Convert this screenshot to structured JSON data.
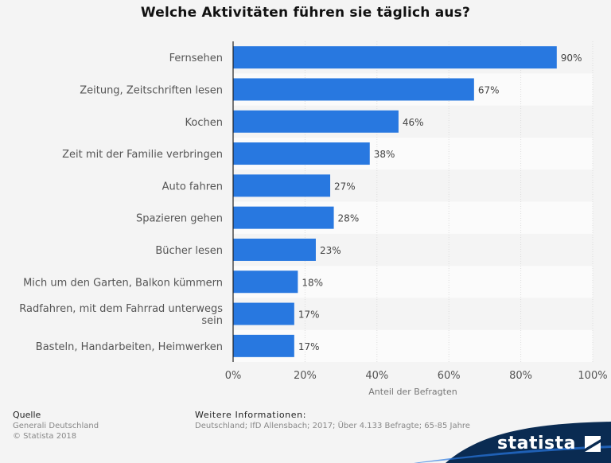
{
  "chart_data": {
    "type": "bar",
    "orientation": "horizontal",
    "title": "Welche Aktivitäten führen sie täglich aus?",
    "xlabel": "Anteil der Befragten",
    "xlim": [
      0,
      100
    ],
    "x_ticks": [
      "0%",
      "20%",
      "40%",
      "60%",
      "80%",
      "100%"
    ],
    "categories": [
      "Fernsehen",
      "Zeitung, Zeitschriften lesen",
      "Kochen",
      "Zeit mit der Familie verbringen",
      "Auto fahren",
      "Spazieren gehen",
      "Bücher lesen",
      "Mich um den Garten, Balkon kümmern",
      "Radfahren, mit dem Fahrrad unterwegs sein",
      "Basteln, Handarbeiten, Heimwerken"
    ],
    "values": [
      90,
      67,
      46,
      38,
      27,
      28,
      23,
      18,
      17,
      17
    ],
    "value_labels": [
      "90%",
      "67%",
      "46%",
      "38%",
      "27%",
      "28%",
      "23%",
      "18%",
      "17%",
      "17%"
    ],
    "bar_color": "#2878e0",
    "grid": true
  },
  "footer": {
    "source_heading": "Quelle",
    "source_lines": [
      "Generali Deutschland",
      "© Statista 2018"
    ],
    "info_heading": "Weitere Informationen:",
    "info_text": "Deutschland; IfD Allensbach; 2017; Über 4.133 Befragte; 65-85 Jahre"
  },
  "brand": {
    "logo_text": "statista",
    "logo_color": "#0a2b52",
    "accent_color": "#2878e0"
  }
}
